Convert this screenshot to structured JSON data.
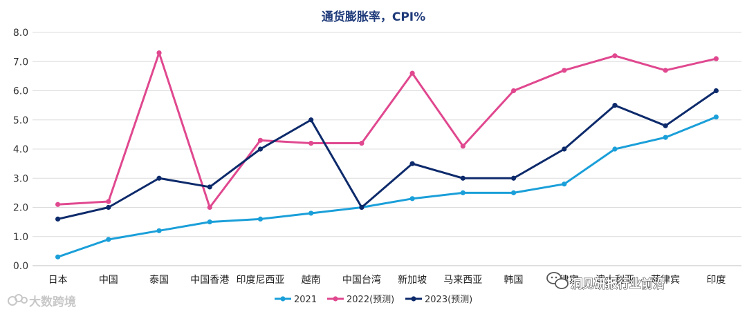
{
  "chart_data": {
    "type": "line",
    "title": "通货膨胀率，CPI%",
    "xlabel": "",
    "ylabel": "",
    "ylim": [
      0,
      8
    ],
    "yticks": [
      "0.0",
      "1.0",
      "2.0",
      "3.0",
      "4.0",
      "5.0",
      "6.0",
      "7.0",
      "8.0"
    ],
    "grid": "horizontal",
    "legend_position": "bottom",
    "categories": [
      "日本",
      "中国",
      "泰国",
      "中国香港",
      "印度尼西亚",
      "越南",
      "中国台湾",
      "新加坡",
      "马来西亚",
      "韩国",
      "菲律宾",
      "澳大利亚",
      "菲律宾",
      "印度"
    ],
    "series": [
      {
        "name": "2021",
        "color": "#1a9fd9",
        "values": [
          0.3,
          0.9,
          1.2,
          1.5,
          1.6,
          1.8,
          2.0,
          2.3,
          2.5,
          2.5,
          2.8,
          4.0,
          4.4,
          5.1
        ]
      },
      {
        "name": "2022(预测)",
        "color": "#e0488f",
        "values": [
          2.1,
          2.2,
          7.3,
          2.0,
          4.3,
          4.2,
          4.2,
          6.6,
          4.1,
          6.0,
          6.7,
          7.2,
          6.7,
          7.1
        ]
      },
      {
        "name": "2023(预测)",
        "color": "#0d2a6b",
        "values": [
          1.6,
          2.0,
          3.0,
          2.7,
          4.0,
          5.0,
          2.0,
          3.5,
          3.0,
          3.0,
          4.0,
          5.5,
          4.8,
          6.0
        ]
      }
    ]
  },
  "watermarks": {
    "left_text": "大数跨境",
    "left_icon": "brand-logo-icon",
    "right_text": "洞见研报行业前沿",
    "right_icon": "wechat-icon"
  }
}
